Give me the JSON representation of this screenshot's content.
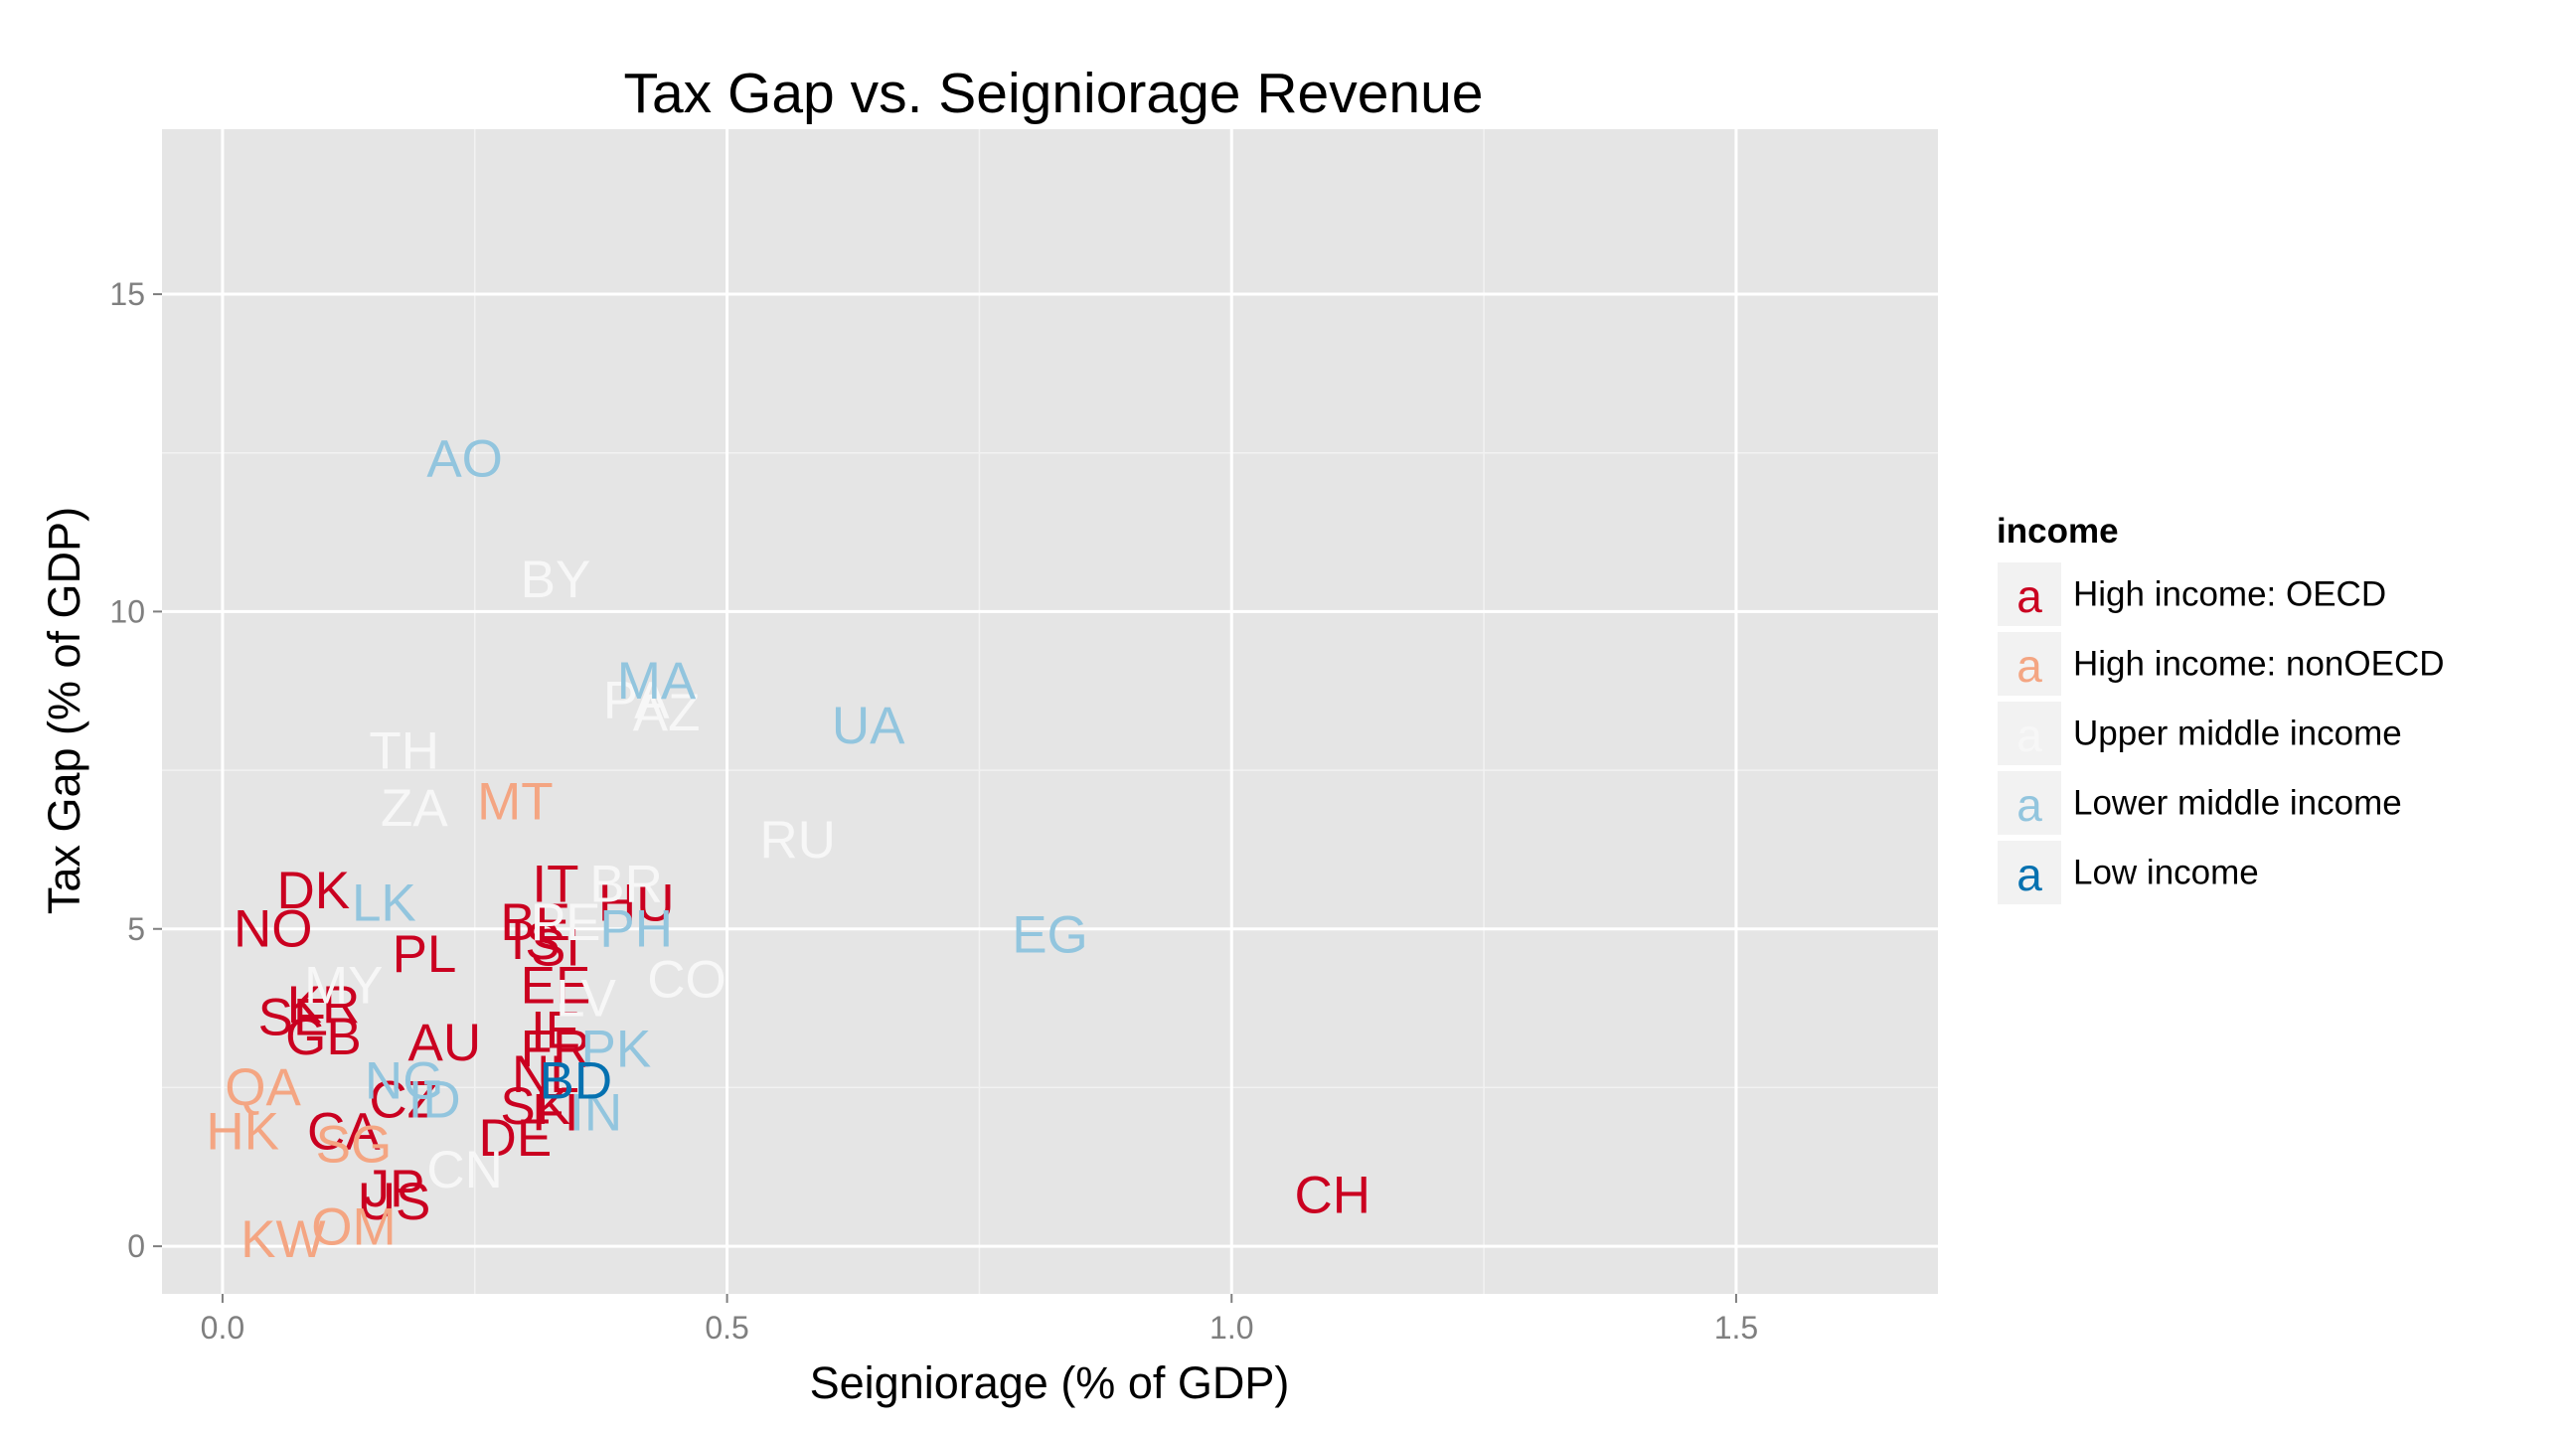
{
  "chart_data": {
    "type": "scatter",
    "title": "Tax Gap vs. Seigniorage Revenue",
    "xlabel": "Seigniorage (% of GDP)",
    "ylabel": "Tax Gap (% of GDP)",
    "xlim": [
      -0.06,
      1.7
    ],
    "ylim": [
      -0.75,
      17.6
    ],
    "x_ticks": [
      0.0,
      0.5,
      1.0,
      1.5
    ],
    "x_tick_labels": [
      "0.0",
      "0.5",
      "1.0",
      "1.5"
    ],
    "y_ticks": [
      0,
      5,
      10,
      15
    ],
    "y_tick_labels": [
      "0",
      "5",
      "10",
      "15"
    ],
    "grid": true,
    "legend": {
      "title": "income",
      "position": "right",
      "key_glyph": "a",
      "entries": [
        {
          "name": "High income: OECD",
          "color": "#ca0020"
        },
        {
          "name": "High income: nonOECD",
          "color": "#f4a582"
        },
        {
          "name": "Upper middle income",
          "color": "#f7f7f7"
        },
        {
          "name": "Lower middle income",
          "color": "#92c5de"
        },
        {
          "name": "Low income",
          "color": "#0571b0"
        }
      ]
    },
    "series": [
      {
        "name": "High income: OECD",
        "color": "#ca0020",
        "points": [
          {
            "label": "DK",
            "x": 0.09,
            "y": 5.6
          },
          {
            "label": "NO",
            "x": 0.05,
            "y": 5.0
          },
          {
            "label": "PL",
            "x": 0.2,
            "y": 4.6
          },
          {
            "label": "SE",
            "x": 0.07,
            "y": 3.6
          },
          {
            "label": "KR",
            "x": 0.1,
            "y": 3.8
          },
          {
            "label": "GB",
            "x": 0.1,
            "y": 3.3
          },
          {
            "label": "AU",
            "x": 0.22,
            "y": 3.2
          },
          {
            "label": "CZ",
            "x": 0.18,
            "y": 2.3
          },
          {
            "label": "CA",
            "x": 0.12,
            "y": 1.8
          },
          {
            "label": "JP",
            "x": 0.17,
            "y": 0.9
          },
          {
            "label": "US",
            "x": 0.17,
            "y": 0.7
          },
          {
            "label": "IT",
            "x": 0.33,
            "y": 5.7
          },
          {
            "label": "BE",
            "x": 0.31,
            "y": 5.1
          },
          {
            "label": "HU",
            "x": 0.41,
            "y": 5.4
          },
          {
            "label": "IS",
            "x": 0.31,
            "y": 4.8
          },
          {
            "label": "SI",
            "x": 0.33,
            "y": 4.7
          },
          {
            "label": "EE",
            "x": 0.33,
            "y": 4.1
          },
          {
            "label": "IE",
            "x": 0.33,
            "y": 3.4
          },
          {
            "label": "FR",
            "x": 0.33,
            "y": 3.1
          },
          {
            "label": "NL",
            "x": 0.32,
            "y": 2.7
          },
          {
            "label": "SK",
            "x": 0.31,
            "y": 2.2
          },
          {
            "label": "FI",
            "x": 0.33,
            "y": 2.1
          },
          {
            "label": "DE",
            "x": 0.29,
            "y": 1.7
          },
          {
            "label": "CH",
            "x": 1.1,
            "y": 0.8
          }
        ]
      },
      {
        "name": "High income: nonOECD",
        "color": "#f4a582",
        "points": [
          {
            "label": "MT",
            "x": 0.29,
            "y": 7.0
          },
          {
            "label": "QA",
            "x": 0.04,
            "y": 2.5
          },
          {
            "label": "HK",
            "x": 0.02,
            "y": 1.8
          },
          {
            "label": "SG",
            "x": 0.13,
            "y": 1.6
          },
          {
            "label": "OM",
            "x": 0.13,
            "y": 0.3
          },
          {
            "label": "KW",
            "x": 0.06,
            "y": 0.1
          }
        ]
      },
      {
        "name": "Upper middle income",
        "color": "#f7f7f7",
        "points": [
          {
            "label": "BY",
            "x": 0.33,
            "y": 10.5
          },
          {
            "label": "PA",
            "x": 0.41,
            "y": 8.6
          },
          {
            "label": "AZ",
            "x": 0.44,
            "y": 8.4
          },
          {
            "label": "TH",
            "x": 0.18,
            "y": 7.8
          },
          {
            "label": "ZA",
            "x": 0.19,
            "y": 6.9
          },
          {
            "label": "RU",
            "x": 0.57,
            "y": 6.4
          },
          {
            "label": "BR",
            "x": 0.4,
            "y": 5.7
          },
          {
            "label": "PE",
            "x": 0.34,
            "y": 5.1
          },
          {
            "label": "MY",
            "x": 0.12,
            "y": 4.1
          },
          {
            "label": "LV",
            "x": 0.36,
            "y": 3.9
          },
          {
            "label": "CO",
            "x": 0.46,
            "y": 4.2
          },
          {
            "label": "CN",
            "x": 0.24,
            "y": 1.2
          }
        ]
      },
      {
        "name": "Lower middle income",
        "color": "#92c5de",
        "points": [
          {
            "label": "AO",
            "x": 0.24,
            "y": 12.4
          },
          {
            "label": "MA",
            "x": 0.43,
            "y": 8.9
          },
          {
            "label": "UA",
            "x": 0.64,
            "y": 8.2
          },
          {
            "label": "LK",
            "x": 0.16,
            "y": 5.4
          },
          {
            "label": "PH",
            "x": 0.41,
            "y": 5.0
          },
          {
            "label": "EG",
            "x": 0.82,
            "y": 4.9
          },
          {
            "label": "PK",
            "x": 0.39,
            "y": 3.1
          },
          {
            "label": "NG",
            "x": 0.18,
            "y": 2.6
          },
          {
            "label": "ID",
            "x": 0.21,
            "y": 2.3
          },
          {
            "label": "IN",
            "x": 0.37,
            "y": 2.1
          }
        ]
      },
      {
        "name": "Low income",
        "color": "#0571b0",
        "points": [
          {
            "label": "BD",
            "x": 0.35,
            "y": 2.6
          }
        ]
      }
    ]
  }
}
